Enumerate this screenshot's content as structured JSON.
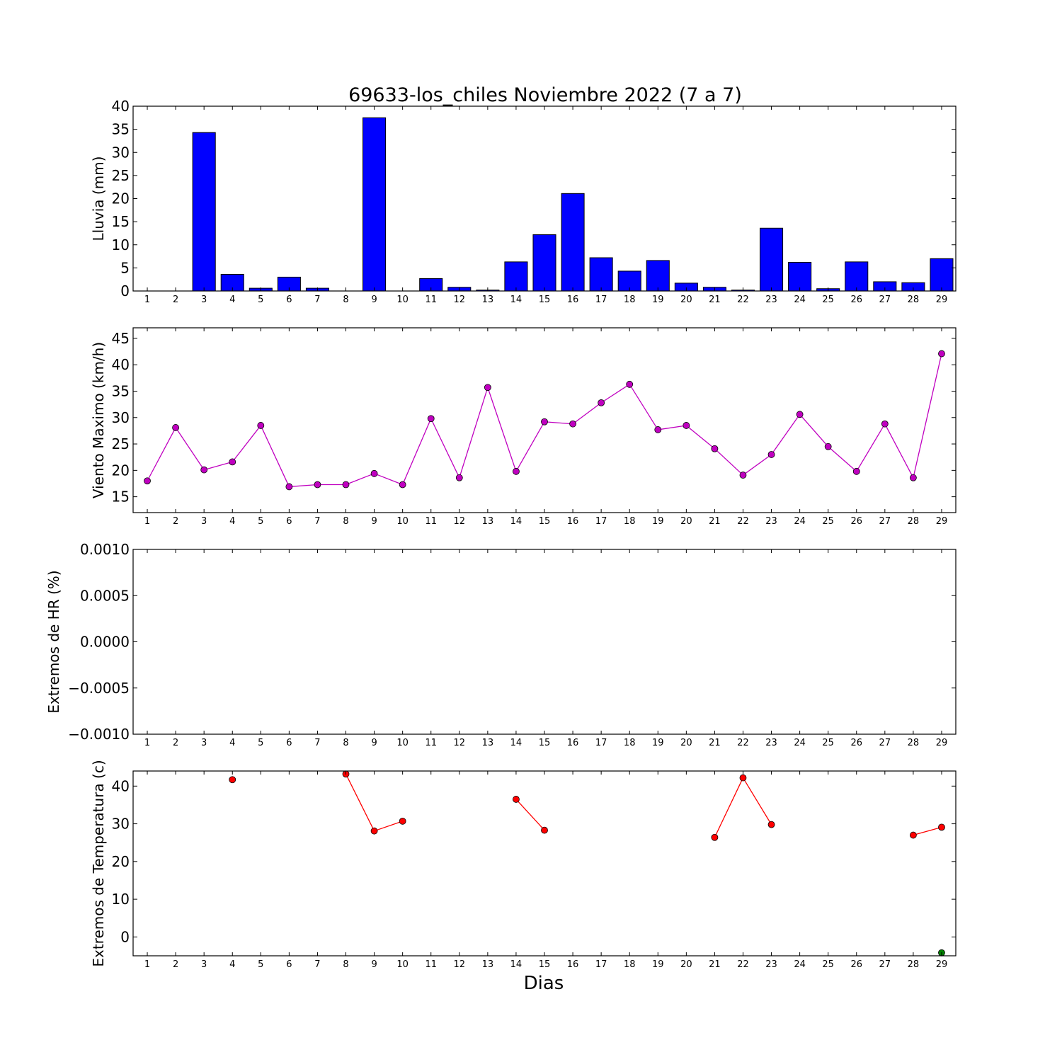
{
  "title": "69633-los_chiles Noviembre 2022  (7 a 7)",
  "xlabel": "Dias",
  "chart_data": [
    {
      "type": "bar",
      "ylabel": "Lluvia (mm)",
      "x": [
        1,
        2,
        3,
        4,
        5,
        6,
        7,
        8,
        9,
        10,
        11,
        12,
        13,
        14,
        15,
        16,
        17,
        18,
        19,
        20,
        21,
        22,
        23,
        24,
        25,
        26,
        27,
        28,
        29
      ],
      "values": [
        0,
        0,
        34.3,
        3.6,
        0.6,
        3.0,
        0.6,
        0,
        37.5,
        0,
        2.7,
        0.8,
        0.2,
        6.3,
        12.2,
        21.1,
        7.2,
        4.3,
        6.6,
        1.7,
        0.8,
        0.2,
        13.6,
        6.2,
        0.5,
        6.3,
        2.0,
        1.8,
        7.0
      ],
      "ylim": [
        0,
        40
      ],
      "yticks": [
        "0",
        "5",
        "10",
        "15",
        "20",
        "25",
        "30",
        "35",
        "40"
      ],
      "color": "#0000ff"
    },
    {
      "type": "line",
      "ylabel": "Viento Maximo (km/h)",
      "x": [
        1,
        2,
        3,
        4,
        5,
        6,
        7,
        8,
        9,
        10,
        11,
        12,
        13,
        14,
        15,
        16,
        17,
        18,
        19,
        20,
        21,
        22,
        23,
        24,
        25,
        26,
        27,
        28,
        29
      ],
      "values": [
        18.0,
        28.1,
        20.1,
        21.6,
        28.5,
        16.9,
        17.3,
        17.3,
        19.4,
        17.3,
        29.8,
        18.6,
        35.7,
        19.8,
        29.2,
        28.8,
        32.8,
        36.3,
        27.7,
        28.5,
        24.1,
        19.1,
        23.0,
        30.6,
        24.5,
        19.8,
        28.8,
        18.6,
        42.1
      ],
      "ylim": [
        12,
        47
      ],
      "yticks": [
        "15",
        "20",
        "25",
        "30",
        "35",
        "40",
        "45"
      ],
      "color": "#c000c0"
    },
    {
      "type": "line",
      "ylabel": "Extremos de HR (%)",
      "x": [
        1,
        2,
        3,
        4,
        5,
        6,
        7,
        8,
        9,
        10,
        11,
        12,
        13,
        14,
        15,
        16,
        17,
        18,
        19,
        20,
        21,
        22,
        23,
        24,
        25,
        26,
        27,
        28,
        29
      ],
      "series": [],
      "ylim": [
        -0.001,
        0.001
      ],
      "yticks": [
        "−0.0010",
        "−0.0005",
        "0.0000",
        "0.0005",
        "0.0010"
      ]
    },
    {
      "type": "line",
      "ylabel": "Extremos de Temperatura (c)",
      "x": [
        1,
        2,
        3,
        4,
        5,
        6,
        7,
        8,
        9,
        10,
        11,
        12,
        13,
        14,
        15,
        16,
        17,
        18,
        19,
        20,
        21,
        22,
        23,
        24,
        25,
        26,
        27,
        28,
        29
      ],
      "series": [
        {
          "color": "#ff0000",
          "values": [
            null,
            null,
            null,
            41.7,
            null,
            null,
            null,
            43.2,
            28.1,
            30.7,
            null,
            null,
            null,
            36.5,
            28.3,
            null,
            null,
            null,
            null,
            null,
            26.4,
            42.2,
            29.8,
            null,
            null,
            null,
            null,
            27.0,
            29.1
          ]
        },
        {
          "color": "#008000",
          "values": [
            null,
            null,
            null,
            null,
            null,
            null,
            null,
            null,
            null,
            null,
            null,
            null,
            null,
            null,
            null,
            null,
            null,
            null,
            null,
            null,
            null,
            null,
            null,
            null,
            null,
            null,
            null,
            null,
            -4.2
          ]
        }
      ],
      "ylim": [
        -5,
        44
      ],
      "yticks": [
        "0",
        "10",
        "20",
        "30",
        "40"
      ]
    }
  ]
}
